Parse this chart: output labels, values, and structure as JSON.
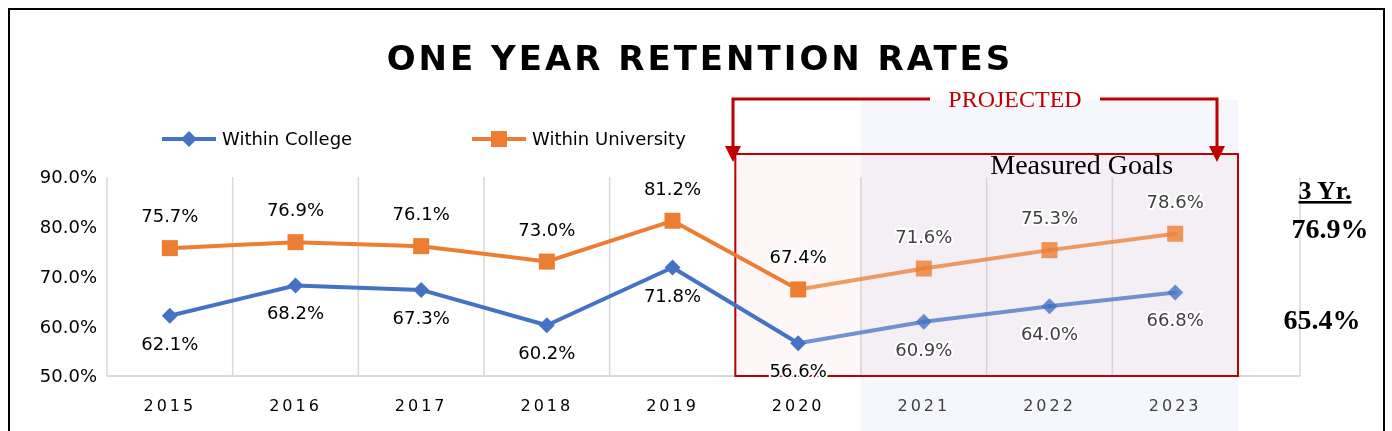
{
  "chart_data": {
    "type": "line",
    "title": "ONE YEAR RETENTION RATES",
    "categories": [
      "2015",
      "2016",
      "2017",
      "2018",
      "2019",
      "2020",
      "2021",
      "2022",
      "2023"
    ],
    "series": [
      {
        "name": "Within College",
        "color": "#4472c4",
        "marker": "diamond",
        "values": [
          62.1,
          68.2,
          67.3,
          60.2,
          71.8,
          56.6,
          60.9,
          64.0,
          66.8
        ],
        "value_labels": [
          "62.1%",
          "68.2%",
          "67.3%",
          "60.2%",
          "71.8%",
          "56.6%",
          "60.9%",
          "64.0%",
          "66.8%"
        ]
      },
      {
        "name": "Within University",
        "color": "#ed7d31",
        "marker": "square",
        "values": [
          75.7,
          76.9,
          76.1,
          73.0,
          81.2,
          67.4,
          71.6,
          75.3,
          78.6
        ],
        "value_labels": [
          "75.7%",
          "76.9%",
          "76.1%",
          "73.0%",
          "81.2%",
          "67.4%",
          "71.6%",
          "75.3%",
          "78.6%"
        ]
      }
    ],
    "ylim": [
      50,
      90
    ],
    "yticks": [
      {
        "value": 50,
        "label": "50.0%"
      },
      {
        "value": 60,
        "label": "60.0%"
      },
      {
        "value": 70,
        "label": "70.0%"
      },
      {
        "value": 80,
        "label": "80.0%"
      },
      {
        "value": 90,
        "label": "90.0%"
      }
    ],
    "grid": "x",
    "legend": "top left",
    "bands": [
      {
        "axis": "x",
        "from": "2021",
        "to": "2023",
        "color": "#f5f7fc"
      },
      {
        "axis": "x",
        "from": "2020",
        "to": "2023",
        "label": "Measured Goals",
        "color": "#c00000"
      }
    ],
    "annotations": [
      "PROJECTED",
      "3 Yr.",
      "76.9%",
      "65.4%"
    ]
  }
}
